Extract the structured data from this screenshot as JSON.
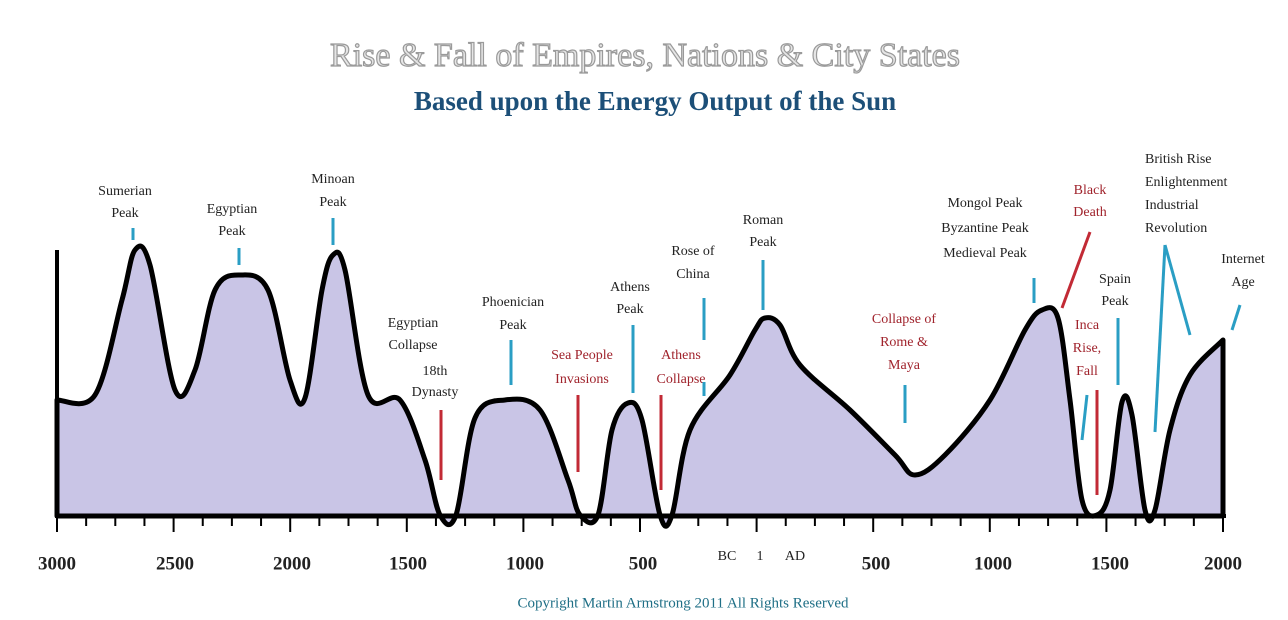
{
  "header": {
    "title": "Rise & Fall of Empires, Nations & City States",
    "subtitle": "Based upon the Energy Output of the Sun"
  },
  "axis": {
    "labels": [
      "3000",
      "2500",
      "2000",
      "1500",
      "1000",
      "500",
      "BC",
      "1",
      "AD",
      "500",
      "1000",
      "1500",
      "2000"
    ]
  },
  "annotations": [
    {
      "lines": [
        "Sumerian",
        "Peak"
      ],
      "color": "#222222"
    },
    {
      "lines": [
        "Egyptian",
        "Peak"
      ],
      "color": "#222222"
    },
    {
      "lines": [
        "Minoan",
        "Peak"
      ],
      "color": "#222222"
    },
    {
      "lines": [
        "Egyptian",
        "Collapse"
      ],
      "color": "#222222"
    },
    {
      "lines": [
        "18th",
        "Dynasty"
      ],
      "color": "#222222"
    },
    {
      "lines": [
        "Phoenician",
        "Peak"
      ],
      "color": "#222222"
    },
    {
      "lines": [
        "Sea People",
        "Invasions"
      ],
      "color": "#a0232c"
    },
    {
      "lines": [
        "Athens",
        "Peak"
      ],
      "color": "#222222"
    },
    {
      "lines": [
        "Athens",
        "Collapse"
      ],
      "color": "#a0232c"
    },
    {
      "lines": [
        "Rose of",
        "China"
      ],
      "color": "#222222"
    },
    {
      "lines": [
        "Roman",
        "Peak"
      ],
      "color": "#222222"
    },
    {
      "lines": [
        "Collapse of",
        "Rome &",
        "Maya"
      ],
      "color": "#a0232c"
    },
    {
      "lines": [
        "Mongol Peak",
        "Byzantine Peak",
        "Medieval Peak"
      ],
      "color": "#222222"
    },
    {
      "lines": [
        "Black",
        "Death"
      ],
      "color": "#a0232c"
    },
    {
      "lines": [
        "Inca",
        "Rise,",
        "Fall"
      ],
      "color": "#a0232c"
    },
    {
      "lines": [
        "Spain",
        "Peak"
      ],
      "color": "#222222"
    },
    {
      "lines": [
        "British Rise",
        "Enlightenment",
        "Industrial",
        "Revolution"
      ],
      "color": "#222222"
    },
    {
      "lines": [
        "Internet",
        "Age"
      ],
      "color": "#222222"
    }
  ],
  "footer": {
    "copyright": "Copyright Martin Armstrong 2011 All Rights Reserved"
  }
}
